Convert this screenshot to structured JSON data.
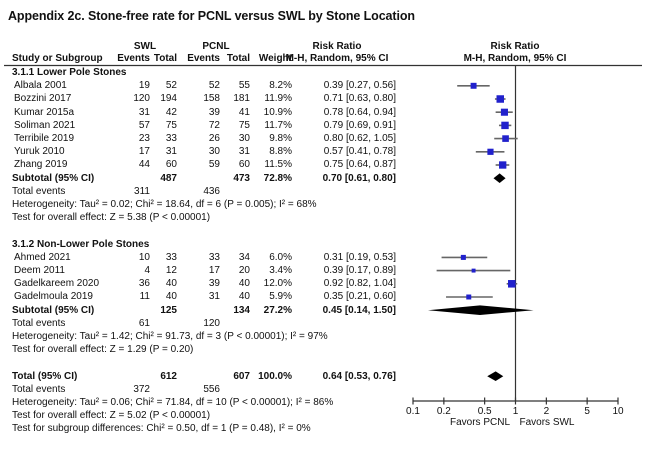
{
  "title": "Appendix 2c. Stone-free rate for PCNL versus SWL by Stone Location",
  "columns": {
    "group1": "SWL",
    "group2": "PCNL",
    "risk_ratio": "Risk Ratio",
    "mh": "M-H, Random, 95% CI",
    "study": "Study or Subgroup",
    "events": "Events",
    "total": "Total",
    "weight": "Weight"
  },
  "colors": {
    "marker": "#2121cc",
    "ci_line": "#666666",
    "diamond": "#000000",
    "rule": "#333333"
  },
  "chart_data": {
    "type": "forest",
    "xscale": "log",
    "xlim": [
      0.1,
      10
    ],
    "ticks": [
      0.1,
      0.2,
      0.5,
      1,
      2,
      5,
      10
    ],
    "favors_left": "Favors PCNL",
    "favors_right": "Favors SWL",
    "groups": [
      {
        "label": "3.1.1 Lower Pole Stones",
        "studies": [
          {
            "name": "Albala 2001",
            "swl_events": 19,
            "swl_total": 52,
            "pcnl_events": 52,
            "pcnl_total": 55,
            "weight": 8.2,
            "weight_text": "8.2%",
            "rr": 0.39,
            "lo": 0.27,
            "hi": 0.56,
            "ci_text": "0.39 [0.27, 0.56]"
          },
          {
            "name": "Bozzini 2017",
            "swl_events": 120,
            "swl_total": 194,
            "pcnl_events": 158,
            "pcnl_total": 181,
            "weight": 11.9,
            "weight_text": "11.9%",
            "rr": 0.71,
            "lo": 0.63,
            "hi": 0.8,
            "ci_text": "0.71 [0.63, 0.80]"
          },
          {
            "name": "Kumar 2015a",
            "swl_events": 31,
            "swl_total": 42,
            "pcnl_events": 39,
            "pcnl_total": 41,
            "weight": 10.9,
            "weight_text": "10.9%",
            "rr": 0.78,
            "lo": 0.64,
            "hi": 0.94,
            "ci_text": "0.78 [0.64, 0.94]"
          },
          {
            "name": "Soliman 2021",
            "swl_events": 57,
            "swl_total": 75,
            "pcnl_events": 72,
            "pcnl_total": 75,
            "weight": 11.7,
            "weight_text": "11.7%",
            "rr": 0.79,
            "lo": 0.69,
            "hi": 0.91,
            "ci_text": "0.79 [0.69, 0.91]"
          },
          {
            "name": "Terribile 2019",
            "swl_events": 23,
            "swl_total": 33,
            "pcnl_events": 26,
            "pcnl_total": 30,
            "weight": 9.8,
            "weight_text": "9.8%",
            "rr": 0.8,
            "lo": 0.62,
            "hi": 1.05,
            "ci_text": "0.80 [0.62, 1.05]"
          },
          {
            "name": "Yuruk 2010",
            "swl_events": 17,
            "swl_total": 31,
            "pcnl_events": 30,
            "pcnl_total": 31,
            "weight": 8.8,
            "weight_text": "8.8%",
            "rr": 0.57,
            "lo": 0.41,
            "hi": 0.78,
            "ci_text": "0.57 [0.41, 0.78]"
          },
          {
            "name": "Zhang 2019",
            "swl_events": 44,
            "swl_total": 60,
            "pcnl_events": 59,
            "pcnl_total": 60,
            "weight": 11.5,
            "weight_text": "11.5%",
            "rr": 0.75,
            "lo": 0.64,
            "hi": 0.87,
            "ci_text": "0.75 [0.64, 0.87]"
          }
        ],
        "subtotal": {
          "label": "Subtotal (95% CI)",
          "swl_total": 487,
          "pcnl_total": 473,
          "weight_text": "72.8%",
          "rr": 0.7,
          "lo": 0.61,
          "hi": 0.8,
          "ci_text": "0.70 [0.61, 0.80]"
        },
        "total_events": {
          "label": "Total events",
          "swl": 311,
          "pcnl": 436
        },
        "heterogeneity": "Heterogeneity: Tau² = 0.02; Chi² = 18.64, df = 6 (P = 0.005); I² = 68%",
        "overall_effect": "Test for overall effect: Z = 5.38 (P < 0.00001)"
      },
      {
        "label": "3.1.2 Non-Lower Pole Stones",
        "studies": [
          {
            "name": "Ahmed 2021",
            "swl_events": 10,
            "swl_total": 33,
            "pcnl_events": 33,
            "pcnl_total": 34,
            "weight": 6.0,
            "weight_text": "6.0%",
            "rr": 0.31,
            "lo": 0.19,
            "hi": 0.53,
            "ci_text": "0.31 [0.19, 0.53]"
          },
          {
            "name": "Deem 2011",
            "swl_events": 4,
            "swl_total": 12,
            "pcnl_events": 17,
            "pcnl_total": 20,
            "weight": 3.4,
            "weight_text": "3.4%",
            "rr": 0.39,
            "lo": 0.17,
            "hi": 0.89,
            "ci_text": "0.39 [0.17, 0.89]"
          },
          {
            "name": "Gadelkareem 2020",
            "swl_events": 36,
            "swl_total": 40,
            "pcnl_events": 39,
            "pcnl_total": 40,
            "weight": 12.0,
            "weight_text": "12.0%",
            "rr": 0.92,
            "lo": 0.82,
            "hi": 1.04,
            "ci_text": "0.92 [0.82, 1.04]"
          },
          {
            "name": "Gadelmoula 2019",
            "swl_events": 11,
            "swl_total": 40,
            "pcnl_events": 31,
            "pcnl_total": 40,
            "weight": 5.9,
            "weight_text": "5.9%",
            "rr": 0.35,
            "lo": 0.21,
            "hi": 0.6,
            "ci_text": "0.35 [0.21, 0.60]"
          }
        ],
        "subtotal": {
          "label": "Subtotal (95% CI)",
          "swl_total": 125,
          "pcnl_total": 134,
          "weight_text": "27.2%",
          "rr": 0.45,
          "lo": 0.14,
          "hi": 1.5,
          "ci_text": "0.45 [0.14, 1.50]"
        },
        "total_events": {
          "label": "Total events",
          "swl": 61,
          "pcnl": 120
        },
        "heterogeneity": "Heterogeneity: Tau² = 1.42; Chi² = 91.73, df = 3 (P < 0.00001); I² = 97%",
        "overall_effect": "Test for overall effect: Z = 1.29 (P = 0.20)"
      }
    ],
    "total": {
      "label": "Total (95% CI)",
      "swl_total": 612,
      "pcnl_total": 607,
      "weight_text": "100.0%",
      "rr": 0.64,
      "lo": 0.53,
      "hi": 0.76,
      "ci_text": "0.64 [0.53, 0.76]"
    },
    "total_events": {
      "label": "Total events",
      "swl": 372,
      "pcnl": 556
    },
    "footer_lines": [
      "Heterogeneity: Tau² = 0.06; Chi² = 71.84, df = 10 (P < 0.00001); I² = 86%",
      "Test for overall effect: Z = 5.02 (P < 0.00001)",
      "Test for subgroup differences: Chi² = 0.50, df = 1 (P = 0.48), I² = 0%"
    ]
  }
}
